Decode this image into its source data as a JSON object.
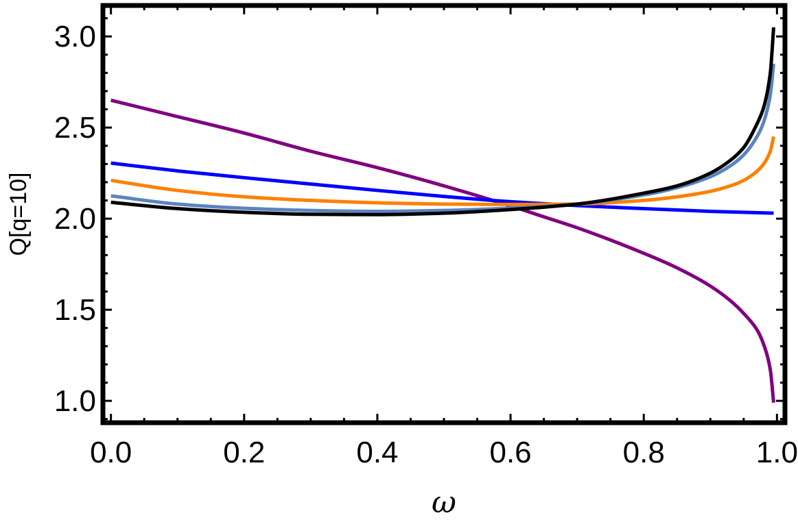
{
  "chart_data": {
    "type": "line",
    "title": "",
    "xlabel": "ω",
    "ylabel": "Q[q=10]",
    "xlim": [
      -0.012,
      1.012
    ],
    "ylim": [
      0.88,
      3.17
    ],
    "x_ticks": [
      0.0,
      0.2,
      0.4,
      0.6,
      0.8,
      1.0
    ],
    "x_tick_labels": [
      "0.0",
      "0.2",
      "0.4",
      "0.6",
      "0.8",
      "1.0"
    ],
    "y_ticks": [
      1.0,
      1.5,
      2.0,
      2.5,
      3.0
    ],
    "y_tick_labels": [
      "1.0",
      "1.5",
      "2.0",
      "2.5",
      "3.0"
    ],
    "grid": false,
    "legend": "none",
    "frame_color": "#000000",
    "series": [
      {
        "color": "#800080",
        "x": [
          0.0,
          0.1,
          0.2,
          0.3,
          0.4,
          0.5,
          0.6,
          0.65,
          0.7,
          0.8,
          0.85,
          0.9,
          0.93,
          0.95,
          0.97,
          0.98,
          0.99,
          0.995
        ],
        "y": [
          2.65,
          2.56,
          2.47,
          2.37,
          2.28,
          2.18,
          2.07,
          2.01,
          1.95,
          1.81,
          1.73,
          1.63,
          1.55,
          1.48,
          1.39,
          1.31,
          1.17,
          0.99
        ]
      },
      {
        "color": "#0000ff",
        "x": [
          0.0,
          0.1,
          0.2,
          0.3,
          0.4,
          0.5,
          0.6,
          0.7,
          0.8,
          0.9,
          0.995
        ],
        "y": [
          2.305,
          2.262,
          2.225,
          2.19,
          2.155,
          2.122,
          2.093,
          2.072,
          2.055,
          2.04,
          2.03
        ]
      },
      {
        "color": "#ff8000",
        "x": [
          0.0,
          0.1,
          0.2,
          0.3,
          0.4,
          0.5,
          0.6,
          0.7,
          0.8,
          0.85,
          0.9,
          0.93,
          0.95,
          0.97,
          0.98,
          0.99,
          0.995
        ],
        "y": [
          2.21,
          2.155,
          2.12,
          2.1,
          2.087,
          2.08,
          2.078,
          2.08,
          2.1,
          2.12,
          2.15,
          2.18,
          2.21,
          2.26,
          2.3,
          2.37,
          2.45
        ]
      },
      {
        "color": "#5b84bf",
        "x": [
          0.0,
          0.1,
          0.2,
          0.3,
          0.4,
          0.5,
          0.6,
          0.7,
          0.8,
          0.85,
          0.9,
          0.93,
          0.95,
          0.97,
          0.98,
          0.99,
          0.995
        ],
        "y": [
          2.125,
          2.08,
          2.057,
          2.045,
          2.04,
          2.045,
          2.058,
          2.08,
          2.13,
          2.17,
          2.23,
          2.29,
          2.35,
          2.45,
          2.53,
          2.68,
          2.85
        ]
      },
      {
        "color": "#000000",
        "x": [
          0.0,
          0.1,
          0.2,
          0.3,
          0.4,
          0.5,
          0.6,
          0.7,
          0.8,
          0.85,
          0.9,
          0.93,
          0.95,
          0.97,
          0.98,
          0.99,
          0.995
        ],
        "y": [
          2.09,
          2.055,
          2.035,
          2.024,
          2.022,
          2.03,
          2.05,
          2.08,
          2.14,
          2.18,
          2.25,
          2.32,
          2.39,
          2.52,
          2.61,
          2.8,
          3.05
        ]
      }
    ]
  }
}
